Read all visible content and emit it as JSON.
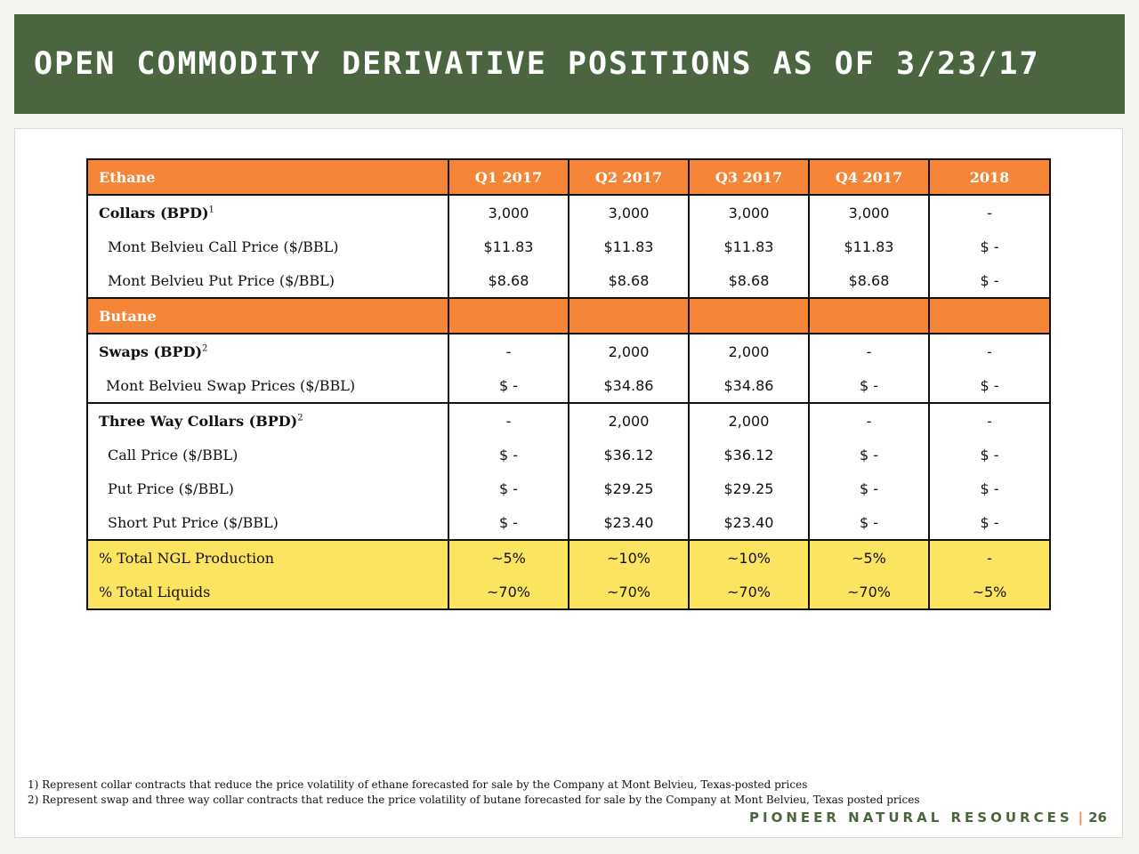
{
  "title": "OPEN COMMODITY DERIVATIVE POSITIONS AS OF 3/23/17",
  "table": {
    "columns": [
      "Q1 2017",
      "Q2 2017",
      "Q3 2017",
      "Q4 2017",
      "2018"
    ],
    "ethane": {
      "label": "Ethane",
      "collars": {
        "label": "Collars (BPD)",
        "sup": "1",
        "values": [
          "3,000",
          "3,000",
          "3,000",
          "3,000",
          "-"
        ]
      },
      "call": {
        "label": "Mont Belvieu Call Price ($/BBL)",
        "values": [
          "$11.83",
          "$11.83",
          "$11.83",
          "$11.83",
          "$ -"
        ]
      },
      "put": {
        "label": "Mont Belvieu Put Price ($/BBL)",
        "values": [
          "$8.68",
          "$8.68",
          "$8.68",
          "$8.68",
          "$ -"
        ]
      }
    },
    "butane": {
      "label": "Butane",
      "swaps": {
        "label": "Swaps (BPD)",
        "sup": "2",
        "values": [
          "-",
          "2,000",
          "2,000",
          "-",
          "-"
        ]
      },
      "swap_price": {
        "label": "Mont Belvieu Swap Prices ($/BBL)",
        "values": [
          "$ -",
          "$34.86",
          "$34.86",
          "$ -",
          "$ -"
        ]
      },
      "three_way": {
        "label": "Three Way Collars (BPD)",
        "sup": "2",
        "values": [
          "-",
          "2,000",
          "2,000",
          "-",
          "-"
        ]
      },
      "call": {
        "label": "Call Price ($/BBL)",
        "values": [
          "$ -",
          "$36.12",
          "$36.12",
          "$ -",
          "$ -"
        ]
      },
      "put": {
        "label": "Put Price ($/BBL)",
        "values": [
          "$ -",
          "$29.25",
          "$29.25",
          "$ -",
          "$ -"
        ]
      },
      "short_put": {
        "label": "Short Put Price ($/BBL)",
        "values": [
          "$ -",
          "$23.40",
          "$23.40",
          "$ -",
          "$ -"
        ]
      }
    },
    "totals": {
      "ngl": {
        "label": "% Total NGL Production",
        "values": [
          "~5%",
          "~10%",
          "~10%",
          "~5%",
          "-"
        ]
      },
      "liquids": {
        "label": "% Total Liquids",
        "values": [
          "~70%",
          "~70%",
          "~70%",
          "~70%",
          "~5%"
        ]
      }
    }
  },
  "footnotes": [
    "1) Represent collar contracts that reduce the price volatility of ethane forecasted for sale by the Company at Mont Belvieu, Texas-posted prices",
    "2) Represent swap and three way collar contracts that reduce the price volatility of butane forecasted for sale by the Company at Mont Belvieu, Texas posted prices"
  ],
  "footer": {
    "brand": "PIONEER NATURAL RESOURCES",
    "separator": "|",
    "page": "26"
  }
}
